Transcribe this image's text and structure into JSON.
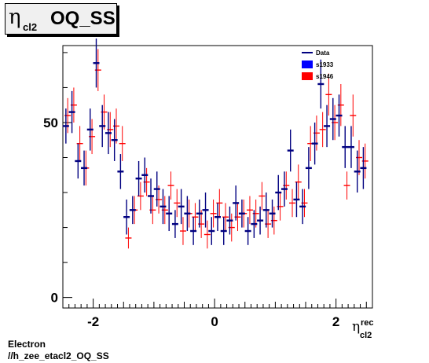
{
  "title": {
    "symbol": "η",
    "subscript": "cl2",
    "text": "OQ_SS"
  },
  "footer": {
    "line1": "Electron",
    "line2": "//h_zee_etacl2_OQ_SS"
  },
  "chart_data": {
    "type": "scatter",
    "title": "η cl2 OQ_SS",
    "xlabel": {
      "symbol": "η",
      "superscript": "rec",
      "subscript": "cl2"
    },
    "xlim": [
      -2.5,
      2.6
    ],
    "ylim": [
      -3,
      72
    ],
    "x_ticks": [
      -2,
      0,
      2
    ],
    "x_tick_labels": [
      "-2",
      "0",
      "2"
    ],
    "y_ticks": [
      0,
      50
    ],
    "y_tick_labels": [
      "0",
      "50"
    ],
    "legend": {
      "placement": "top-right",
      "entries": [
        {
          "label": "Data",
          "style": "line",
          "color": "#000080"
        },
        {
          "label": "s1933",
          "style": "box",
          "color": "#0000ff"
        },
        {
          "label": "s1946",
          "style": "box",
          "color": "#ff0000"
        }
      ]
    },
    "series": [
      {
        "name": "Data",
        "color": "#000080",
        "points": [
          [
            -2.45,
            49,
            5
          ],
          [
            -2.35,
            53,
            6
          ],
          [
            -2.25,
            39,
            5
          ],
          [
            -2.15,
            37,
            5
          ],
          [
            -2.05,
            48,
            6
          ],
          [
            -1.95,
            67,
            7
          ],
          [
            -1.85,
            49,
            6
          ],
          [
            -1.75,
            47,
            6
          ],
          [
            -1.65,
            45,
            6
          ],
          [
            -1.55,
            36,
            5
          ],
          [
            -1.45,
            23,
            5
          ],
          [
            -1.35,
            25,
            4
          ],
          [
            -1.25,
            34,
            5
          ],
          [
            -1.15,
            35,
            5
          ],
          [
            -1.05,
            29,
            5
          ],
          [
            -0.95,
            31,
            5
          ],
          [
            -0.85,
            26,
            5
          ],
          [
            -0.75,
            24,
            5
          ],
          [
            -0.65,
            21,
            4
          ],
          [
            -0.55,
            26,
            5
          ],
          [
            -0.45,
            24,
            5
          ],
          [
            -0.35,
            19,
            4
          ],
          [
            -0.25,
            24,
            4
          ],
          [
            -0.15,
            25,
            5
          ],
          [
            -0.05,
            19,
            4
          ],
          [
            0.05,
            23,
            4
          ],
          [
            0.15,
            19,
            4
          ],
          [
            0.25,
            22,
            4
          ],
          [
            0.35,
            27,
            5
          ],
          [
            0.45,
            24,
            4
          ],
          [
            0.55,
            19,
            4
          ],
          [
            0.65,
            21,
            4
          ],
          [
            0.75,
            22,
            4
          ],
          [
            0.85,
            25,
            5
          ],
          [
            0.95,
            24,
            4
          ],
          [
            1.05,
            30,
            5
          ],
          [
            1.15,
            31,
            5
          ],
          [
            1.25,
            42,
            6
          ],
          [
            1.35,
            28,
            5
          ],
          [
            1.45,
            26,
            5
          ],
          [
            1.55,
            37,
            6
          ],
          [
            1.65,
            44,
            6
          ],
          [
            1.75,
            61,
            7
          ],
          [
            1.85,
            49,
            6
          ],
          [
            1.95,
            51,
            6
          ],
          [
            2.05,
            52,
            6
          ],
          [
            2.15,
            43,
            6
          ],
          [
            2.25,
            43,
            6
          ],
          [
            2.35,
            36,
            6
          ],
          [
            2.45,
            37,
            6
          ]
        ]
      },
      {
        "name": "s1946",
        "color": "#ff0000",
        "points": [
          [
            -2.42,
            52,
            5
          ],
          [
            -2.32,
            55,
            5
          ],
          [
            -2.22,
            44,
            5
          ],
          [
            -2.12,
            37,
            5
          ],
          [
            -2.02,
            46,
            5
          ],
          [
            -1.92,
            65,
            6
          ],
          [
            -1.82,
            53,
            5
          ],
          [
            -1.72,
            48,
            5
          ],
          [
            -1.62,
            49,
            5
          ],
          [
            -1.52,
            44,
            5
          ],
          [
            -1.42,
            17,
            3
          ],
          [
            -1.32,
            25,
            4
          ],
          [
            -1.22,
            29,
            4
          ],
          [
            -1.12,
            33,
            4
          ],
          [
            -1.02,
            25,
            4
          ],
          [
            -0.92,
            28,
            4
          ],
          [
            -0.82,
            25,
            4
          ],
          [
            -0.72,
            32,
            4
          ],
          [
            -0.62,
            27,
            4
          ],
          [
            -0.52,
            19,
            4
          ],
          [
            -0.42,
            24,
            4
          ],
          [
            -0.32,
            23,
            4
          ],
          [
            -0.22,
            21,
            4
          ],
          [
            -0.12,
            18,
            4
          ],
          [
            -0.02,
            24,
            4
          ],
          [
            0.08,
            27,
            4
          ],
          [
            0.18,
            23,
            4
          ],
          [
            0.28,
            20,
            4
          ],
          [
            0.38,
            23,
            4
          ],
          [
            0.48,
            24,
            4
          ],
          [
            0.58,
            25,
            4
          ],
          [
            0.68,
            24,
            4
          ],
          [
            0.78,
            29,
            4
          ],
          [
            0.88,
            21,
            4
          ],
          [
            0.98,
            22,
            4
          ],
          [
            1.08,
            26,
            4
          ],
          [
            1.18,
            32,
            4
          ],
          [
            1.28,
            27,
            4
          ],
          [
            1.38,
            33,
            5
          ],
          [
            1.48,
            27,
            4
          ],
          [
            1.58,
            44,
            5
          ],
          [
            1.68,
            47,
            5
          ],
          [
            1.78,
            48,
            5
          ],
          [
            1.88,
            58,
            6
          ],
          [
            1.98,
            50,
            5
          ],
          [
            2.08,
            55,
            6
          ],
          [
            2.18,
            32,
            4
          ],
          [
            2.28,
            52,
            6
          ],
          [
            2.38,
            40,
            5
          ],
          [
            2.48,
            39,
            5
          ]
        ]
      }
    ]
  }
}
